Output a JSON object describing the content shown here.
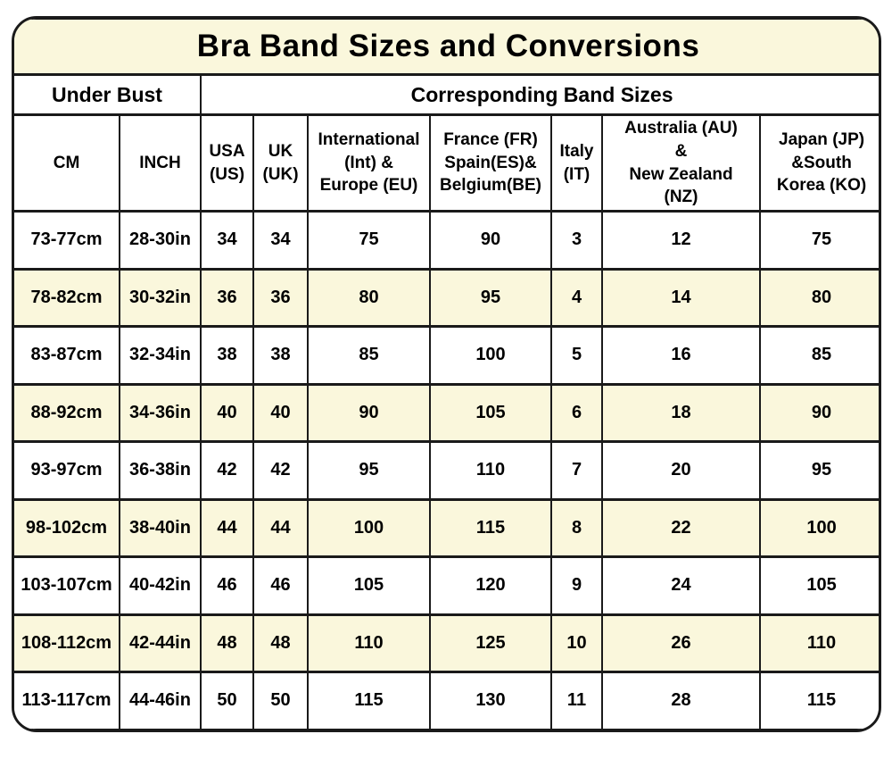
{
  "page": {
    "background": "#FFFFFF"
  },
  "colors": {
    "highlight_cream": "#FAF7DC",
    "border": "#1A1A1A",
    "text": "#000000",
    "background": "#FFFFFF"
  },
  "chart_data": {
    "type": "table",
    "title": "Bra Band Sizes and Conversions",
    "group_headers": {
      "under_bust": "Under Bust",
      "band_sizes": "Corresponding Band Sizes"
    },
    "columns": [
      "CM",
      "INCH",
      "USA\n(US)",
      "UK\n(UK)",
      "International\n(Int) &\nEurope (EU)",
      "France (FR)\nSpain(ES)&\nBelgium(BE)",
      "Italy\n(IT)",
      "Australia (AU)\n&\nNew Zealand\n(NZ)",
      "Japan (JP)\n&South\nKorea (KO)"
    ],
    "rows": [
      [
        "73-77cm",
        "28-30in",
        "34",
        "34",
        "75",
        "90",
        "3",
        "12",
        "75"
      ],
      [
        "78-82cm",
        "30-32in",
        "36",
        "36",
        "80",
        "95",
        "4",
        "14",
        "80"
      ],
      [
        "83-87cm",
        "32-34in",
        "38",
        "38",
        "85",
        "100",
        "5",
        "16",
        "85"
      ],
      [
        "88-92cm",
        "34-36in",
        "40",
        "40",
        "90",
        "105",
        "6",
        "18",
        "90"
      ],
      [
        "93-97cm",
        "36-38in",
        "42",
        "42",
        "95",
        "110",
        "7",
        "20",
        "95"
      ],
      [
        "98-102cm",
        "38-40in",
        "44",
        "44",
        "100",
        "115",
        "8",
        "22",
        "100"
      ],
      [
        "103-107cm",
        "40-42in",
        "46",
        "46",
        "105",
        "120",
        "9",
        "24",
        "105"
      ],
      [
        "108-112cm",
        "42-44in",
        "48",
        "48",
        "110",
        "125",
        "10",
        "26",
        "110"
      ],
      [
        "113-117cm",
        "44-46in",
        "50",
        "50",
        "115",
        "130",
        "11",
        "28",
        "115"
      ]
    ],
    "layout": {
      "zebra_highlight": "rows 2,4,6,8 highlighted cream",
      "legend_position": "none",
      "grid": true
    }
  }
}
